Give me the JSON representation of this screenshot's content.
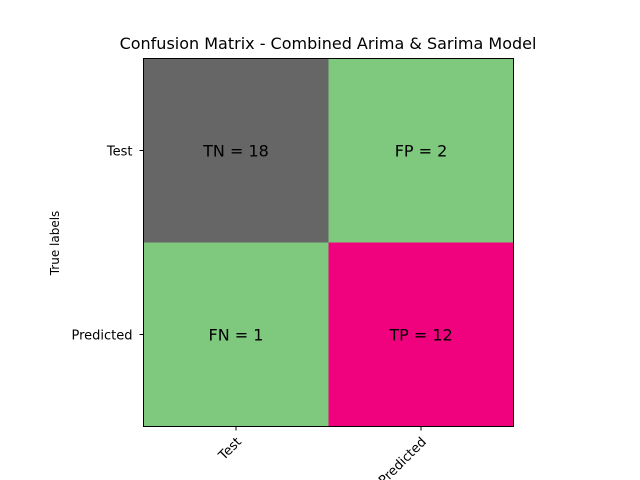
{
  "chart_data": {
    "type": "heatmap",
    "title": "Confusion Matrix - Combined Arima & Sarima Model",
    "ylabel": "True labels",
    "xlabel": "",
    "x_tick_labels": [
      "Test",
      "Predicted"
    ],
    "y_tick_labels": [
      "Test",
      "Predicted"
    ],
    "cells": [
      [
        {
          "label": "TN = 18",
          "value": 18,
          "color": "#666666"
        },
        {
          "label": "FP = 2",
          "value": 2,
          "color": "#7fc97f"
        }
      ],
      [
        {
          "label": "FN = 1",
          "value": 1,
          "color": "#7fc97f"
        },
        {
          "label": "TP = 12",
          "value": 12,
          "color": "#f0027f"
        }
      ]
    ]
  }
}
